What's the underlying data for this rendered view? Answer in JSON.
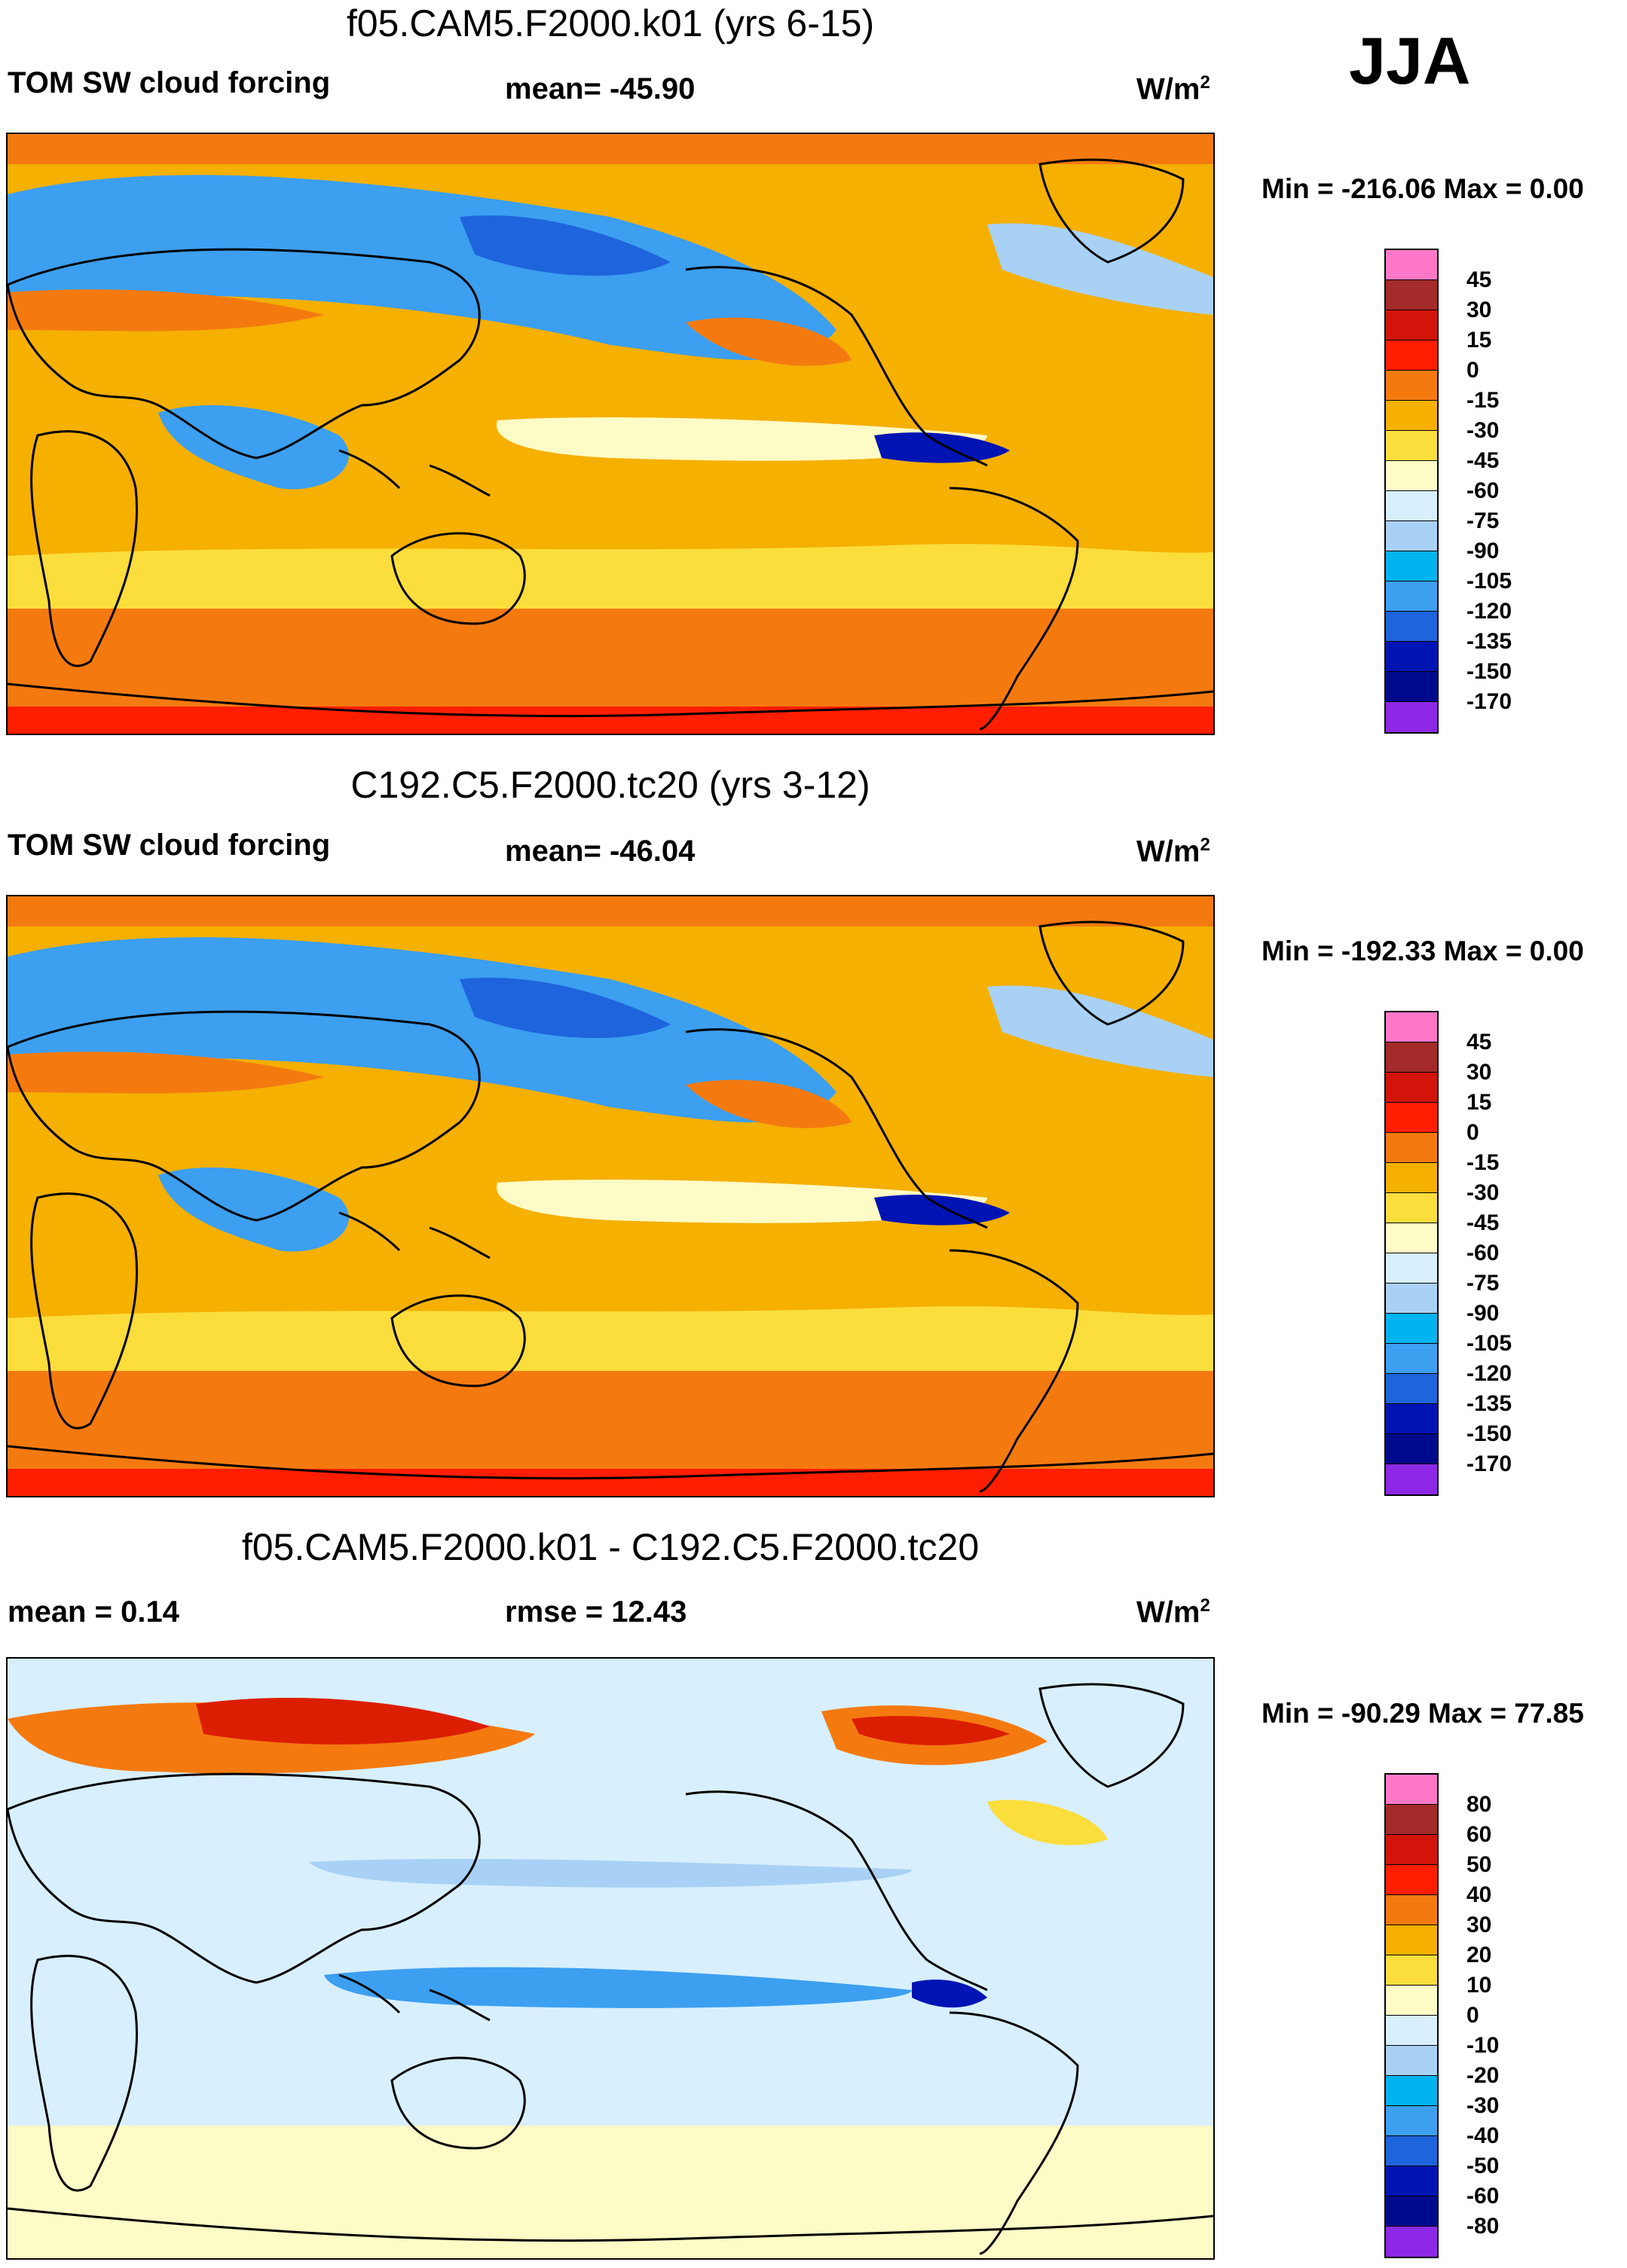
{
  "season": "JJA",
  "units": "W/m",
  "units_sup": "2",
  "panels": [
    {
      "title": "f05.CAM5.F2000.k01 (yrs 6-15)",
      "left_label": "TOM SW cloud forcing",
      "center_label": "mean= -45.90",
      "minmax": "Min = -216.06 Max =   0.00",
      "colors": {
        "bg": "#f5b000",
        "ocean_mid": "#fbde3c",
        "polar": "#f47a10",
        "edge": "#ff1e00",
        "cloud_dark": "#1e64dc",
        "cloud_mid": "#3c9ff0",
        "cloud_light": "#a9d1f5",
        "cloud_pale": "#fdfbc6",
        "core": "#0014b4"
      }
    },
    {
      "title": "C192.C5.F2000.tc20 (yrs 3-12)",
      "left_label": "TOM SW cloud forcing",
      "center_label": "mean= -46.04",
      "minmax": "Min = -192.33 Max =   0.00",
      "colors": {
        "bg": "#f5b000",
        "ocean_mid": "#fbde3c",
        "polar": "#f47a10",
        "edge": "#ff1e00",
        "cloud_dark": "#1e64dc",
        "cloud_mid": "#3c9ff0",
        "cloud_light": "#a9d1f5",
        "cloud_pale": "#fdfbc6",
        "core": "#0014b4"
      }
    },
    {
      "title": "f05.CAM5.F2000.k01 - C192.C5.F2000.tc20",
      "left_label": "mean =   0.14",
      "center_label": "rmse =  12.43",
      "minmax": "Min = -90.29 Max =  77.85",
      "colors": {
        "bg": "#d8efff",
        "ocean_mid": "#fdfbc6",
        "polar": "#d8efff",
        "edge": "#fdfbc6",
        "warm_dark": "#dc1e00",
        "warm_mid": "#f47a10",
        "warm_light": "#fbde3c",
        "cool_mid": "#3c9ff0",
        "cool_light": "#a9d1f5",
        "core": "#0014b4"
      }
    }
  ],
  "colorbars": [
    {
      "ticks": [
        "45",
        "30",
        "15",
        "0",
        "-15",
        "-30",
        "-45",
        "-60",
        "-75",
        "-90",
        "-105",
        "-120",
        "-135",
        "-150",
        "-170"
      ],
      "colors": [
        "#ff78c8",
        "#a52a2a",
        "#d2140a",
        "#ff1e00",
        "#f47a10",
        "#f5b000",
        "#fbde3c",
        "#fdfbc6",
        "#d8efff",
        "#a9d1f5",
        "#00b4f0",
        "#3c9ff0",
        "#1e64dc",
        "#0014b4",
        "#000a8c",
        "#8c28e6"
      ]
    },
    {
      "ticks": [
        "45",
        "30",
        "15",
        "0",
        "-15",
        "-30",
        "-45",
        "-60",
        "-75",
        "-90",
        "-105",
        "-120",
        "-135",
        "-150",
        "-170"
      ],
      "colors": [
        "#ff78c8",
        "#a52a2a",
        "#d2140a",
        "#ff1e00",
        "#f47a10",
        "#f5b000",
        "#fbde3c",
        "#fdfbc6",
        "#d8efff",
        "#a9d1f5",
        "#00b4f0",
        "#3c9ff0",
        "#1e64dc",
        "#0014b4",
        "#000a8c",
        "#8c28e6"
      ]
    },
    {
      "ticks": [
        "80",
        "60",
        "50",
        "40",
        "30",
        "20",
        "10",
        "0",
        "-10",
        "-20",
        "-30",
        "-40",
        "-50",
        "-60",
        "-80"
      ],
      "colors": [
        "#ff78c8",
        "#a52a2a",
        "#d2140a",
        "#ff1e00",
        "#f47a10",
        "#f5b000",
        "#fbde3c",
        "#fdfbc6",
        "#d8efff",
        "#a9d1f5",
        "#00b4f0",
        "#3c9ff0",
        "#1e64dc",
        "#0014b4",
        "#000a8c",
        "#8c28e6"
      ]
    }
  ]
}
